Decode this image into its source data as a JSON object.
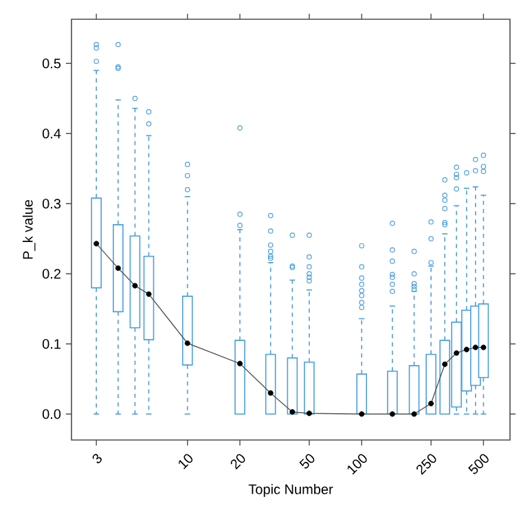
{
  "chart_data": {
    "type": "box",
    "xlabel": "Topic Number",
    "ylabel": "P_k value",
    "log": "x",
    "color": "#4a9ee0",
    "x": [
      3,
      4,
      5,
      6,
      10,
      20,
      30,
      40,
      50,
      100,
      150,
      200,
      250,
      300,
      350,
      400,
      450,
      500
    ],
    "boxes": [
      {
        "low": 0,
        "q1": 0.18,
        "median": 0.243,
        "q3": 0.308,
        "high": 0.49,
        "outliers": [
          0.527,
          0.522,
          0.503
        ]
      },
      {
        "low": 0,
        "q1": 0.146,
        "median": 0.208,
        "q3": 0.27,
        "high": 0.448,
        "outliers": [
          0.527,
          0.495,
          0.493
        ]
      },
      {
        "low": 0,
        "q1": 0.123,
        "median": 0.183,
        "q3": 0.254,
        "high": 0.436,
        "outliers": [
          0.45
        ]
      },
      {
        "low": 0,
        "q1": 0.106,
        "median": 0.171,
        "q3": 0.225,
        "high": 0.397,
        "outliers": [
          0.431,
          0.414
        ]
      },
      {
        "low": 0,
        "q1": 0.07,
        "median": 0.101,
        "q3": 0.168,
        "high": 0.31,
        "outliers": [
          0.32,
          0.34,
          0.356
        ]
      },
      {
        "low": 0,
        "q1": 0,
        "median": 0.072,
        "q3": 0.105,
        "high": 0.263,
        "outliers": [
          0.269,
          0.285,
          0.408
        ]
      },
      {
        "low": 0,
        "q1": 0,
        "median": 0.03,
        "q3": 0.085,
        "high": 0.216,
        "outliers": [
          0.283,
          0.261,
          0.241,
          0.232,
          0.225,
          0.222
        ]
      },
      {
        "low": 0,
        "q1": 0,
        "median": 0.003,
        "q3": 0.08,
        "high": 0.191,
        "outliers": [
          0.255,
          0.211,
          0.209
        ]
      },
      {
        "low": 0,
        "q1": 0,
        "median": 0.001,
        "q3": 0.074,
        "high": 0.177,
        "outliers": [
          0.255,
          0.224,
          0.21,
          0.2,
          0.195,
          0.19
        ]
      },
      {
        "low": 0,
        "q1": 0,
        "median": 0.0,
        "q3": 0.057,
        "high": 0.136,
        "outliers": [
          0.24,
          0.21,
          0.194,
          0.185,
          0.176,
          0.169,
          0.159,
          0.152
        ]
      },
      {
        "low": 0,
        "q1": 0,
        "median": 0.0,
        "q3": 0.061,
        "high": 0.154,
        "outliers": [
          0.272,
          0.234,
          0.218,
          0.199,
          0.195,
          0.185,
          0.175
        ]
      },
      {
        "low": 0,
        "q1": 0,
        "median": 0.0,
        "q3": 0.069,
        "high": 0.175,
        "outliers": [
          0.232,
          0.2,
          0.186,
          0.182,
          0.178
        ]
      },
      {
        "low": 0,
        "q1": 0,
        "median": 0.015,
        "q3": 0.085,
        "high": 0.211,
        "outliers": [
          0.274,
          0.25,
          0.216
        ]
      },
      {
        "low": 0,
        "q1": 0,
        "median": 0.071,
        "q3": 0.105,
        "high": 0.257,
        "outliers": [
          0.334,
          0.312,
          0.305,
          0.293,
          0.273,
          0.27
        ]
      },
      {
        "low": 0,
        "q1": 0.01,
        "median": 0.087,
        "q3": 0.131,
        "high": 0.297,
        "outliers": [
          0.352,
          0.342,
          0.337,
          0.321
        ]
      },
      {
        "low": 0,
        "q1": 0.033,
        "median": 0.092,
        "q3": 0.148,
        "high": 0.322,
        "outliers": [
          0.344
        ]
      },
      {
        "low": 0,
        "q1": 0.041,
        "median": 0.095,
        "q3": 0.154,
        "high": 0.324,
        "outliers": [
          0.363,
          0.347
        ]
      },
      {
        "low": 0,
        "q1": 0.052,
        "median": 0.095,
        "q3": 0.157,
        "high": 0.312,
        "outliers": [
          0.369,
          0.353,
          0.346
        ]
      }
    ],
    "series": [
      {
        "type": "line",
        "color": "#555555",
        "x": [
          3,
          4,
          5,
          6,
          10,
          20,
          30,
          40,
          50,
          100,
          150,
          200,
          250,
          300,
          350,
          400,
          450,
          500
        ],
        "values": [
          0.243,
          0.208,
          0.183,
          0.171,
          0.101,
          0.072,
          0.03,
          0.003,
          0.001,
          0.0,
          0.0,
          0.0,
          0.015,
          0.071,
          0.087,
          0.092,
          0.095,
          0.095
        ]
      }
    ],
    "xlim": [
      2.16,
      710
    ],
    "ylim": [
      -0.037,
      0.563
    ],
    "xticks": [
      3,
      10,
      20,
      50,
      100,
      250,
      500
    ],
    "yticks": [
      {
        "value": 0,
        "label": "0.0"
      },
      {
        "value": 0.1,
        "label": "0.1"
      },
      {
        "value": 0.2,
        "label": "0.2"
      },
      {
        "value": 0.3,
        "label": "0.3"
      },
      {
        "value": 0.4,
        "label": "0.4"
      },
      {
        "value": 0.5,
        "label": "0.5"
      }
    ]
  }
}
